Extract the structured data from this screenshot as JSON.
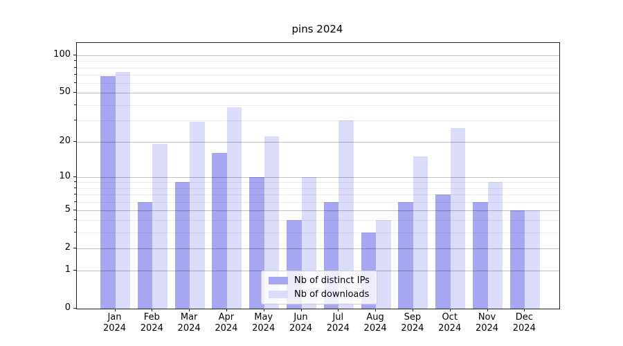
{
  "title": "pins 2024",
  "legend": {
    "items": [
      {
        "label": "Nb of distinct IPs",
        "color": "#a6a6f1"
      },
      {
        "label": "Nb of downloads",
        "color": "#dbdbfa"
      }
    ]
  },
  "chart_data": {
    "type": "bar",
    "title": "pins 2024",
    "categories": [
      "Jan 2024",
      "Feb 2024",
      "Mar 2024",
      "Apr 2024",
      "May 2024",
      "Jun 2024",
      "Jul 2024",
      "Aug 2024",
      "Sep 2024",
      "Oct 2024",
      "Nov 2024",
      "Dec 2024"
    ],
    "series": [
      {
        "name": "Nb of distinct IPs",
        "color": "#a6a6f1",
        "values": [
          68,
          6,
          9,
          16,
          10,
          4,
          6,
          3,
          6,
          7,
          6,
          5
        ]
      },
      {
        "name": "Nb of downloads",
        "color": "#dbdbfa",
        "values": [
          74,
          19,
          29,
          38,
          22,
          10,
          30,
          4,
          15,
          26,
          9,
          5
        ]
      }
    ],
    "xlabel": "",
    "ylabel": "",
    "yscale": "log1p",
    "ylim": [
      0,
      126
    ],
    "yticks": [
      0,
      1,
      2,
      5,
      10,
      20,
      50,
      100
    ],
    "yticks_minor": [
      3,
      4,
      6,
      7,
      8,
      9,
      30,
      40,
      60,
      70,
      80,
      90
    ],
    "grid": true,
    "legend_position": "lower center"
  }
}
